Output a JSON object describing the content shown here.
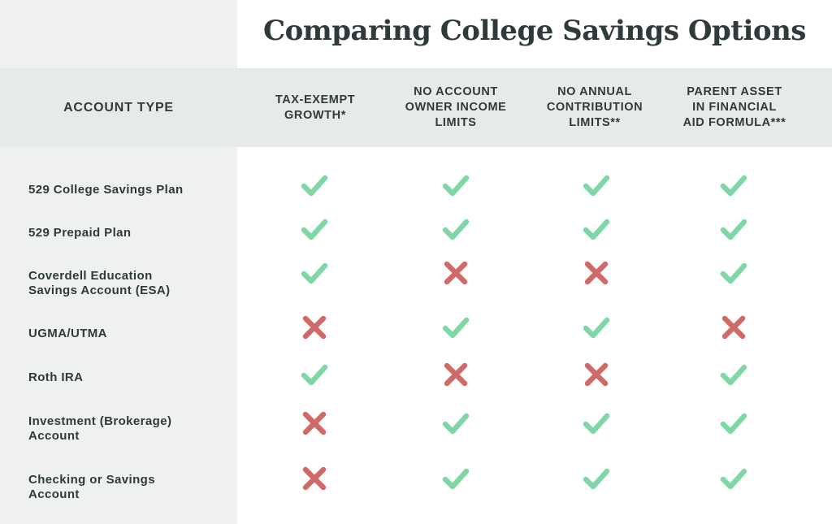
{
  "title": "Comparing College Savings Options",
  "columns": {
    "account_type": "ACCOUNT TYPE",
    "tax_exempt": "TAX-EXEMPT\nGROWTH*",
    "no_income_limits": "NO ACCOUNT\nOWNER INCOME\nLIMITS",
    "no_contribution_limits": "NO ANNUAL\nCONTRIBUTION\nLIMITS**",
    "parent_asset": "PARENT ASSET\nIN FINANCIAL\nAID FORMULA***"
  },
  "rows": [
    {
      "label": "529 College Savings Plan",
      "marks": [
        "yes",
        "yes",
        "yes",
        "yes"
      ]
    },
    {
      "label": "529 Prepaid Plan",
      "marks": [
        "yes",
        "yes",
        "yes",
        "yes"
      ]
    },
    {
      "label": "Coverdell Education\nSavings Account (ESA)",
      "marks": [
        "yes",
        "no",
        "no",
        "yes"
      ]
    },
    {
      "label": "UGMA/UTMA",
      "marks": [
        "no",
        "yes",
        "yes",
        "no"
      ]
    },
    {
      "label": "Roth IRA",
      "marks": [
        "yes",
        "no",
        "no",
        "yes"
      ]
    },
    {
      "label": "Investment (Brokerage)\nAccount",
      "marks": [
        "no",
        "yes",
        "yes",
        "yes"
      ]
    },
    {
      "label": "Checking or Savings\nAccount",
      "marks": [
        "no",
        "yes",
        "yes",
        "yes"
      ]
    }
  ],
  "colors": {
    "check": "#7fd6a6",
    "cross": "#cf6a68",
    "text": "#2f3a3b",
    "left_panel": "#eef1ef",
    "header_band": "#e6ebe8"
  },
  "icons": {
    "yes": "checkmark-icon",
    "no": "x-mark-icon"
  }
}
